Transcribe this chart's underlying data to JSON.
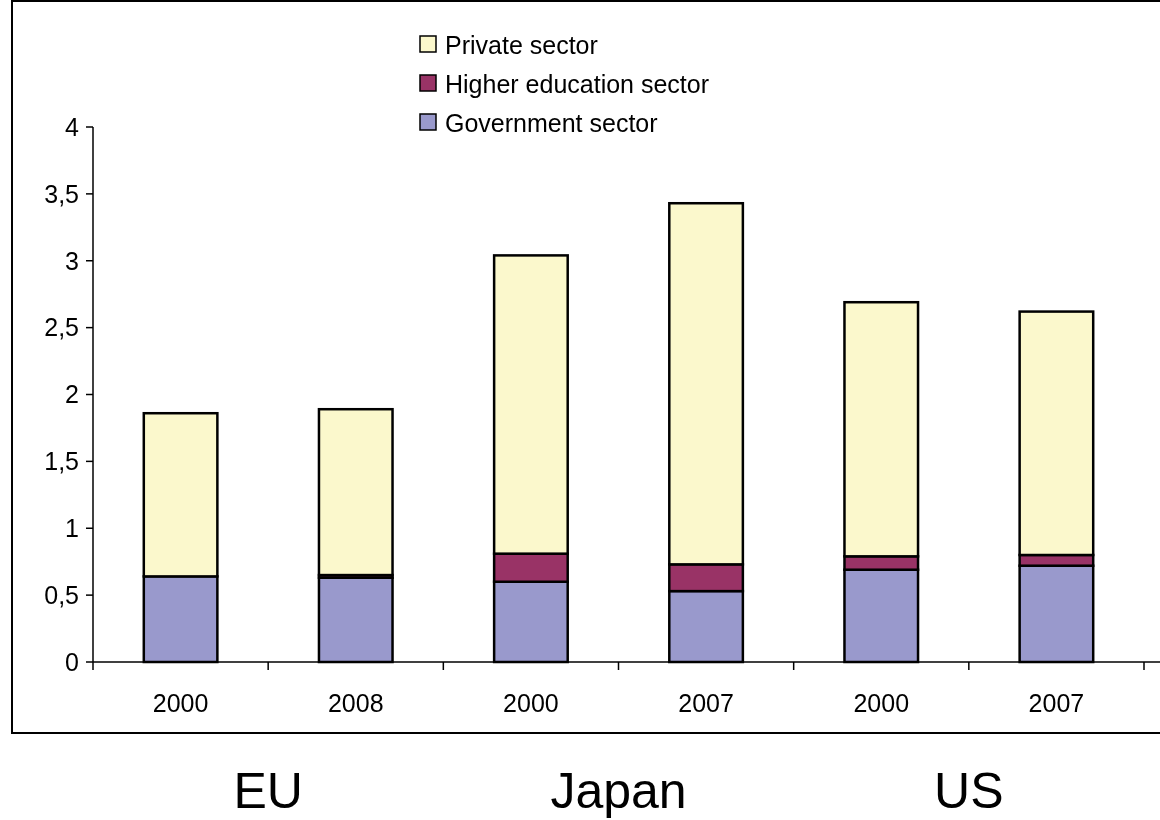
{
  "chart_data": {
    "type": "bar",
    "stacked": true,
    "categories": [
      "2000",
      "2008",
      "2000",
      "2007",
      "2000",
      "2007"
    ],
    "series": [
      {
        "name": "Government sector",
        "color": "#9999cc",
        "values": [
          0.64,
          0.63,
          0.6,
          0.53,
          0.69,
          0.72
        ]
      },
      {
        "name": "Higher education sector",
        "color": "#993366",
        "values": [
          0,
          0.02,
          0.21,
          0.2,
          0.1,
          0.08
        ]
      },
      {
        "name": "Private sector",
        "color": "#fbf8cc",
        "values": [
          1.22,
          1.24,
          2.23,
          2.7,
          1.9,
          1.82
        ]
      }
    ],
    "ylim": [
      0,
      4
    ],
    "yticks": [
      0,
      {
        "value": 0.5,
        "label": "0,5"
      },
      1,
      {
        "value": 1.5,
        "label": "1,5"
      },
      2,
      {
        "value": 2.5,
        "label": "2,5"
      },
      3,
      {
        "value": 3.5,
        "label": "3,5"
      },
      4
    ],
    "legend": "top",
    "grid": false,
    "annotations": [
      "EU",
      "Japan",
      "US"
    ]
  }
}
